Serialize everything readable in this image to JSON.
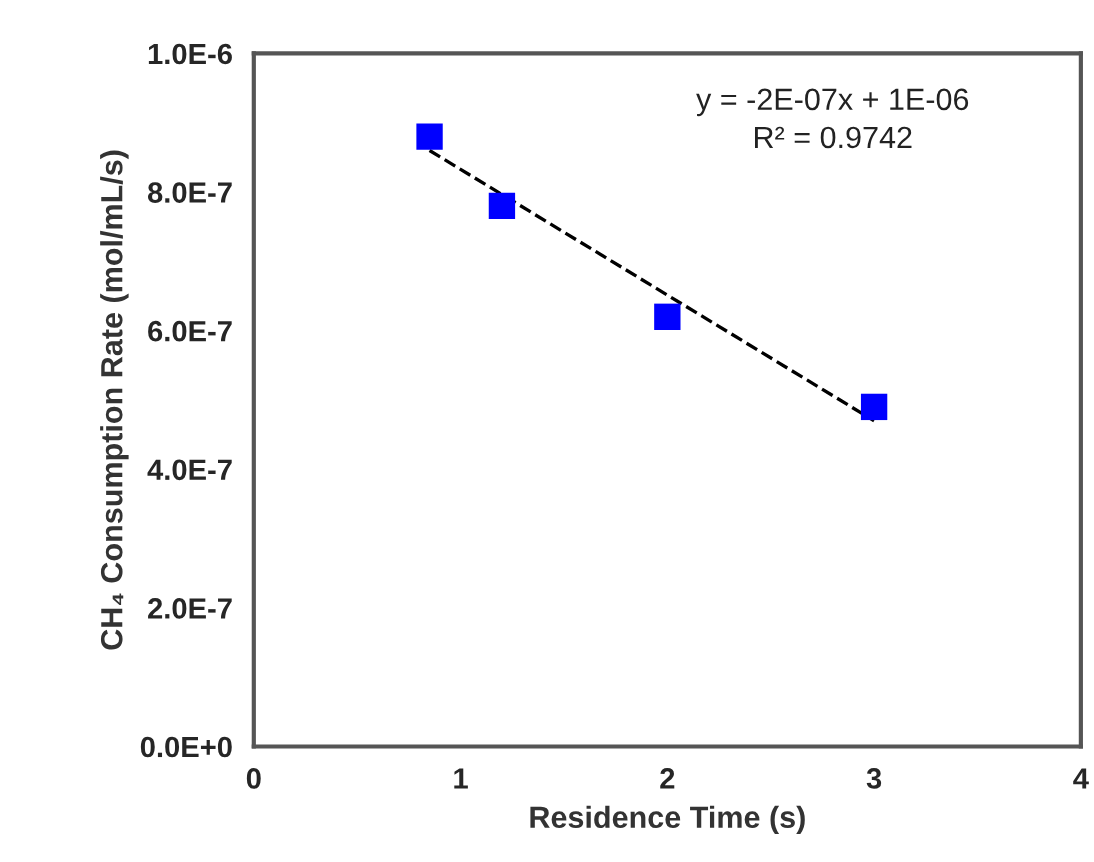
{
  "chart_data": {
    "type": "scatter",
    "xlabel": "Residence Time (s)",
    "ylabel": "CH₄ Consumption Rate (mol/mL/s)",
    "series": [
      {
        "color": "#0000ff",
        "marker": "square",
        "x": [
          0.85,
          1.2,
          2,
          3
        ],
        "values": [
          8.8e-07,
          7.8e-07,
          6.2e-07,
          4.9e-07
        ]
      },
      {
        "type": "line",
        "color": "#000000",
        "line_style": "dashed",
        "marker": "none",
        "x": [
          0.85,
          3
        ],
        "values": [
          8.6e-07,
          4.7e-07
        ]
      }
    ],
    "xlim": [
      0,
      4
    ],
    "xticks": [
      0,
      1,
      2,
      3,
      4
    ],
    "ylim": [
      0,
      1e-06
    ],
    "yticks": [
      {
        "value": 0,
        "label": "0.0E+0"
      },
      {
        "value": 2e-07,
        "label": "2.0E-7"
      },
      {
        "value": 4e-07,
        "label": "4.0E-7"
      },
      {
        "value": 6e-07,
        "label": "6.0E-7"
      },
      {
        "value": 8e-07,
        "label": "8.0E-7"
      },
      {
        "value": 1e-06,
        "label": "1.0E-6"
      }
    ],
    "annotations": [
      "y = -2E-07x + 1E-06",
      "R² = 0.9742"
    ],
    "grid": false
  }
}
